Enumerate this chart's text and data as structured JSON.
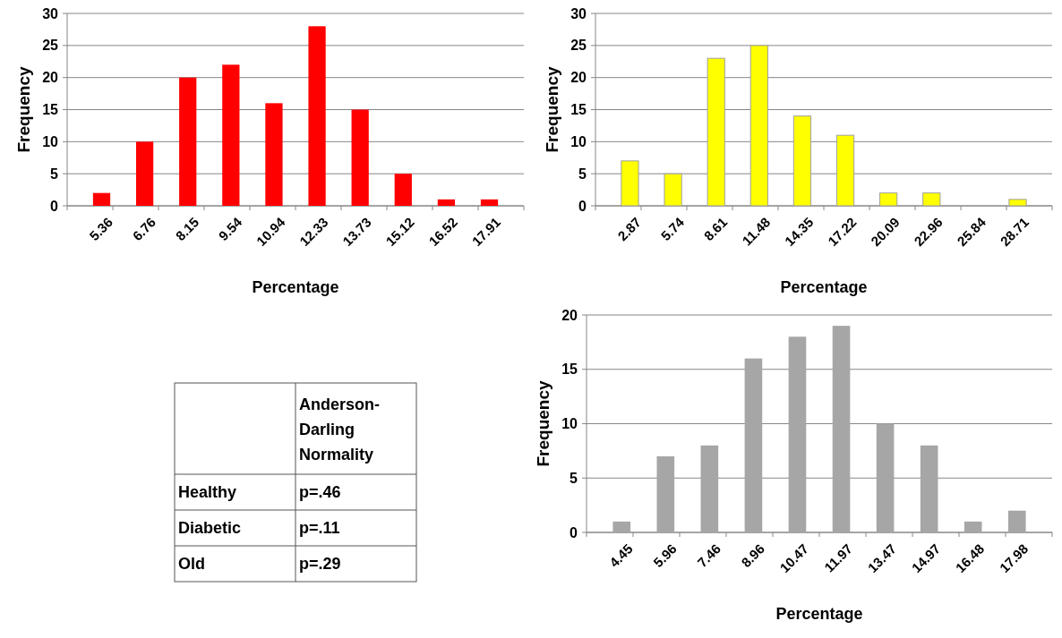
{
  "chart_data": [
    {
      "type": "bar",
      "categories": [
        "5.36",
        "6.76",
        "8.15",
        "9.54",
        "10.94",
        "12.33",
        "13.73",
        "15.12",
        "16.52",
        "17.91"
      ],
      "values": [
        2,
        10,
        20,
        22,
        16,
        28,
        15,
        5,
        1,
        1
      ],
      "color": "#ff0000",
      "xlabel": "Percentage",
      "ylabel": "Frequency",
      "ylim": [
        0,
        30
      ],
      "yticks": [
        0,
        5,
        10,
        15,
        20,
        25,
        30
      ],
      "grid": "y"
    },
    {
      "type": "bar",
      "categories": [
        "2.87",
        "5.74",
        "8.61",
        "11.48",
        "14.35",
        "17.22",
        "20.09",
        "22.96",
        "25.84",
        "28.71"
      ],
      "values": [
        7,
        5,
        23,
        25,
        14,
        11,
        2,
        2,
        0,
        1
      ],
      "color": "#ffff00",
      "xlabel": "Percentage",
      "ylabel": "Frequency",
      "ylim": [
        0,
        30
      ],
      "yticks": [
        0,
        5,
        10,
        15,
        20,
        25,
        30
      ],
      "grid": "y"
    },
    {
      "type": "other",
      "title": "Anderson-Darling Normality",
      "categories": [
        "Healthy",
        "Diabetic",
        "Old"
      ],
      "annotations": [
        "p=.46",
        "p=.11",
        "p=.29"
      ]
    },
    {
      "type": "bar",
      "categories": [
        "4.45",
        "5.96",
        "7.46",
        "8.96",
        "10.47",
        "11.97",
        "13.47",
        "14.97",
        "16.48",
        "17.98"
      ],
      "values": [
        1,
        7,
        8,
        16,
        18,
        19,
        10,
        8,
        1,
        2
      ],
      "color": "#a6a6a6",
      "xlabel": "Percentage",
      "ylabel": "Frequency",
      "ylim": [
        0,
        20
      ],
      "yticks": [
        0,
        5,
        10,
        15,
        20
      ],
      "grid": "y"
    }
  ]
}
